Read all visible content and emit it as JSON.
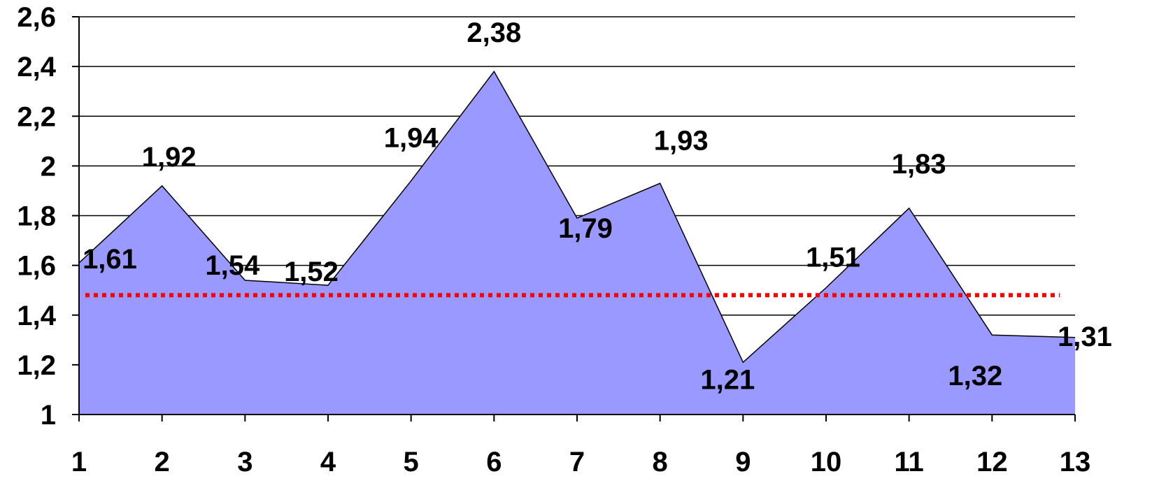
{
  "chart_data": {
    "type": "area",
    "title": "",
    "xlabel": "",
    "ylabel": "",
    "x": [
      1,
      2,
      3,
      4,
      5,
      6,
      7,
      8,
      9,
      10,
      11,
      12,
      13
    ],
    "x_tick_labels": [
      "1",
      "2",
      "3",
      "4",
      "5",
      "6",
      "7",
      "8",
      "9",
      "10",
      "11",
      "12",
      "13"
    ],
    "values": [
      1.61,
      1.92,
      1.54,
      1.52,
      1.94,
      2.38,
      1.79,
      1.93,
      1.21,
      1.51,
      1.83,
      1.32,
      1.31
    ],
    "data_labels": [
      "1,61",
      "1,92",
      "1,54",
      "1,52",
      "1,94",
      "2,38",
      "1,79",
      "1,93",
      "1,21",
      "1,51",
      "1,83",
      "1,32",
      "1,31"
    ],
    "ylim": [
      1,
      2.6
    ],
    "y_ticks": [
      1,
      1.2,
      1.4,
      1.6,
      1.8,
      2,
      2.2,
      2.4,
      2.6
    ],
    "y_tick_labels": [
      "1",
      "1,2",
      "1,4",
      "1,6",
      "1,8",
      "2",
      "2,2",
      "2,4",
      "2,6"
    ],
    "reference_line": {
      "value": 1.48,
      "style": "dotted",
      "color": "#ff0000"
    },
    "grid": true,
    "legend": "none",
    "colors": {
      "area_fill": "#9999ff",
      "area_stroke": "#000000",
      "gridline": "#000000"
    }
  }
}
